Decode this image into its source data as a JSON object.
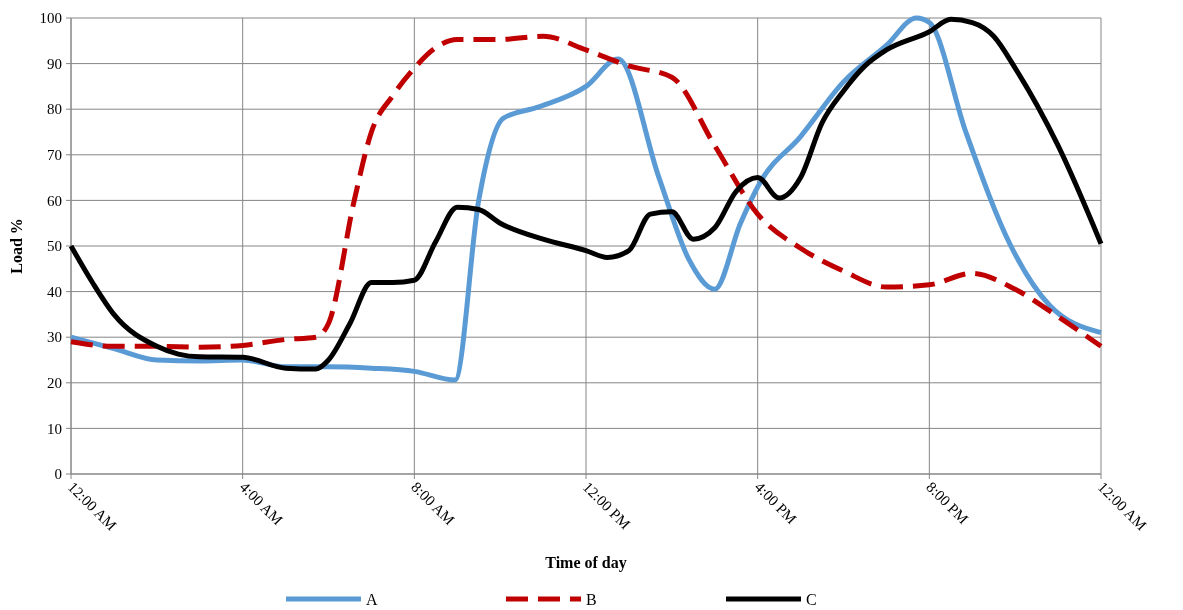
{
  "chart_data": {
    "type": "line",
    "xlabel": "Time of day",
    "ylabel": "Load %",
    "xlim": [
      0,
      24
    ],
    "xticks": [
      {
        "value": 0,
        "label": "12:00 AM"
      },
      {
        "value": 4,
        "label": "4:00 AM"
      },
      {
        "value": 8,
        "label": "8:00 AM"
      },
      {
        "value": 12,
        "label": "12:00 PM"
      },
      {
        "value": 16,
        "label": "4:00 PM"
      },
      {
        "value": 20,
        "label": "8:00 PM"
      },
      {
        "value": 24,
        "label": "12:00 AM"
      }
    ],
    "ylim": [
      0,
      100
    ],
    "yticks": [
      0,
      10,
      20,
      30,
      40,
      50,
      60,
      70,
      80,
      90,
      100
    ],
    "grid": true,
    "legend": "bottom",
    "marker": "none",
    "series": [
      {
        "name": "A",
        "color": "#5b9bd5",
        "line_style": "solid",
        "x": [
          0,
          1,
          2,
          3,
          4,
          5,
          6,
          7,
          8,
          8.95,
          9.5,
          10.07,
          10.9,
          12,
          12.75,
          13.7,
          14.4,
          15,
          15.6,
          16.06,
          17,
          18,
          19,
          19.7,
          20,
          20.85,
          21.9,
          22.8,
          24
        ],
        "values": [
          30,
          27.5,
          25,
          24.8,
          25,
          23.5,
          23.5,
          23.2,
          22.5,
          20.6,
          60,
          78,
          80.5,
          85,
          91,
          65,
          47,
          40.5,
          55,
          64,
          74,
          86,
          94,
          100,
          99,
          75,
          50,
          37,
          31
        ]
      },
      {
        "name": "B",
        "color": "#c00000",
        "line_style": "dashed",
        "x": [
          0,
          1,
          2,
          3,
          4,
          5,
          5.7,
          6,
          6.6,
          7,
          7.5,
          8,
          8.5,
          9,
          10,
          11,
          12,
          13,
          14,
          15,
          16,
          17,
          18,
          19,
          20,
          21,
          22,
          23,
          24
        ],
        "values": [
          29,
          28,
          28,
          27.8,
          28.2,
          29.5,
          30,
          33,
          60,
          75,
          83,
          89,
          93.5,
          95.3,
          95.3,
          96,
          93,
          89.5,
          87,
          72,
          57,
          49.5,
          44.5,
          41,
          41.5,
          44,
          40.5,
          34.5,
          28
        ]
      },
      {
        "name": "C",
        "color": "#000000",
        "line_style": "solid",
        "x": [
          0,
          0.5,
          1,
          2,
          2.5,
          3,
          4,
          5,
          5.7,
          6,
          6.5,
          7,
          7.5,
          8,
          8.5,
          9,
          9.5,
          10,
          11,
          12,
          12.5,
          13,
          13.5,
          14,
          14.5,
          15,
          15.5,
          16,
          16.5,
          17,
          17.5,
          18,
          18.5,
          19,
          20,
          20.5,
          21,
          21.5,
          22,
          23,
          24
        ],
        "values": [
          50,
          42,
          35,
          28,
          26.3,
          25.7,
          25.6,
          23.2,
          23,
          25,
          33,
          42,
          42,
          42.5,
          51,
          58.5,
          58,
          55,
          51.5,
          49,
          47.5,
          49,
          57,
          57.5,
          51.5,
          54,
          62,
          65,
          60.5,
          65,
          77,
          84,
          89.5,
          93,
          97,
          99.7,
          99,
          96,
          89,
          72,
          50.5
        ]
      }
    ]
  }
}
